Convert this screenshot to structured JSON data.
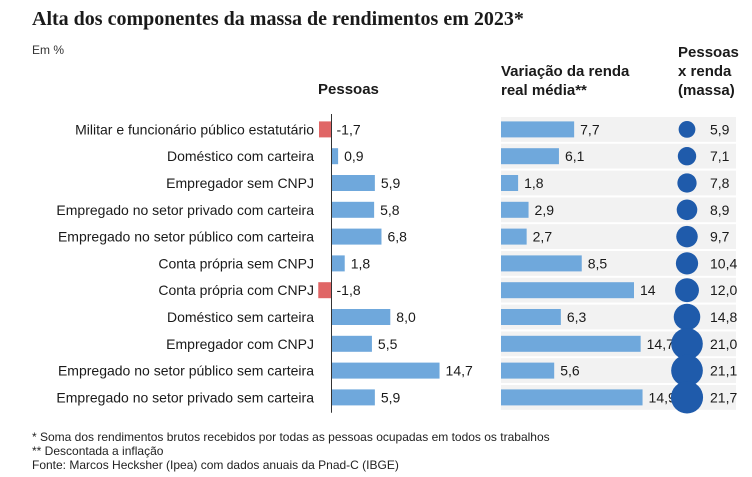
{
  "title": "Alta dos componentes da massa de rendimentos em 2023*",
  "unit": "Em %",
  "colors": {
    "positive": "#6fa8dc",
    "negative": "#e06666",
    "bubble": "#1f5bab",
    "stripe": "#f2f2f2"
  },
  "chart_data": {
    "type": "bar",
    "title": "Alta dos componentes da massa de rendimentos em 2023*",
    "categories": [
      "Militar e funcionário público estatutário",
      "Doméstico com carteira",
      "Empregador sem CNPJ",
      "Empregado no setor privado com carteira",
      "Empregado no setor público com carteira",
      "Conta própria sem CNPJ",
      "Conta própria com CNPJ",
      "Doméstico sem carteira",
      "Empregador com CNPJ",
      "Empregado no setor público sem carteira",
      "Empregado no setor privado sem carteira"
    ],
    "series": [
      {
        "name": "Pessoas",
        "type": "bar",
        "values": [
          -1.7,
          0.9,
          5.9,
          5.8,
          6.8,
          1.8,
          -1.8,
          8.0,
          5.5,
          14.7,
          5.9
        ],
        "labels": [
          "-1,7",
          "0,9",
          "5,9",
          "5,8",
          "6,8",
          "1,8",
          "-1,8",
          "8,0",
          "5,5",
          "14,7",
          "5,9"
        ]
      },
      {
        "name": "Variação da renda real média**",
        "type": "bar",
        "values": [
          7.7,
          6.1,
          1.8,
          2.9,
          2.7,
          8.5,
          14,
          6.3,
          14.7,
          5.6,
          14.9
        ],
        "labels": [
          "7,7",
          "6,1",
          "1,8",
          "2,9",
          "2,7",
          "8,5",
          "14",
          "6,3",
          "14,7",
          "5,6",
          "14,9"
        ]
      },
      {
        "name": "Pessoas x renda (massa)",
        "type": "bubble",
        "values": [
          5.9,
          7.1,
          7.8,
          8.9,
          9.7,
          10.4,
          12.0,
          14.8,
          21.0,
          21.1,
          21.7
        ],
        "labels": [
          "5,9",
          "7,1",
          "7,8",
          "8,9",
          "9,7",
          "10,4",
          "12,0",
          "14,8",
          "21,0",
          "21,1",
          "21,7"
        ]
      }
    ],
    "headers": {
      "pessoas": [
        "Pessoas"
      ],
      "renda": [
        "Variação da renda",
        "real média**"
      ],
      "massa": [
        "Pessoas",
        "x renda",
        "(massa)"
      ]
    }
  },
  "footnotes": [
    "* Soma dos rendimentos brutos recebidos por todas as pessoas ocupadas em todos os trabalhos",
    "** Descontada a inflação",
    "Fonte: Marcos Hecksher (Ipea) com dados anuais da Pnad-C (IBGE)"
  ]
}
